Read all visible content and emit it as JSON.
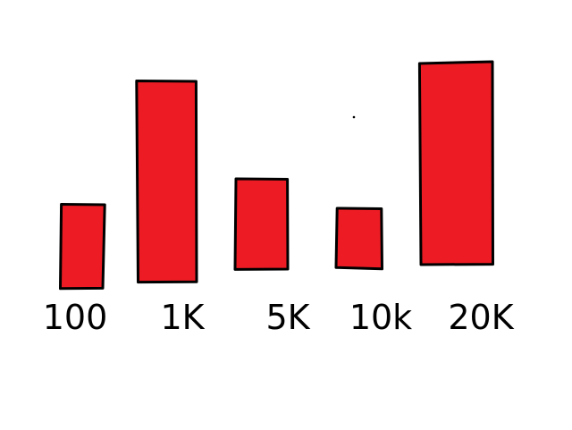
{
  "chart_data": {
    "type": "bar",
    "categories": [
      "100",
      "1K",
      "5K",
      "10k",
      "20K"
    ],
    "values": [
      93,
      226,
      100,
      67,
      226
    ],
    "title": "",
    "xlabel": "",
    "ylabel": "",
    "ylim": [
      0,
      240
    ],
    "grid": false,
    "legend": "none"
  },
  "colors": {
    "bar_fill": "#ed1c24",
    "bar_stroke": "#000000",
    "background": "#ffffff"
  }
}
